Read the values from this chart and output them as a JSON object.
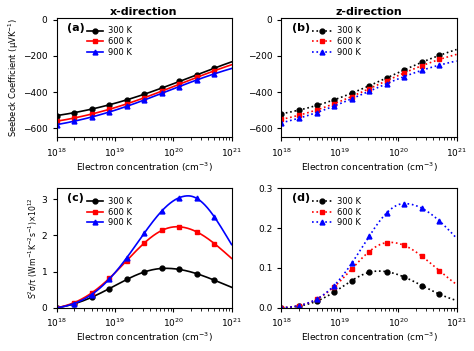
{
  "title_a": "x-direction",
  "title_b": "z-direction",
  "label_a": "(a)",
  "label_b": "(b)",
  "label_c": "(c)",
  "label_d": "(d)",
  "xlabel": "Electron concentration (cm$^{-3}$)",
  "ylabel_ab": "Seebeck Coefficient (μVK$^{-1}$)",
  "ylabel_c": "S$^2$σ/τ (Wm$^{-1}$K$^{-2}$s$^{-1}$)×10$^{12}$",
  "temps": [
    "300 K",
    "600 K",
    "900 K"
  ],
  "colors": [
    "black",
    "red",
    "blue"
  ],
  "xmin": 1e+18,
  "xmax": 1e+21,
  "ylim_ab": [
    -650,
    10
  ],
  "ylim_c": [
    0,
    3.3
  ],
  "ylim_d": [
    0.0,
    0.3
  ],
  "yticks_ab": [
    0,
    -200,
    -400,
    -600
  ],
  "yticks_c": [
    0,
    1,
    2,
    3
  ],
  "yticks_d": [
    0.0,
    0.1,
    0.2,
    0.3
  ],
  "bg_color": "#ffffff"
}
